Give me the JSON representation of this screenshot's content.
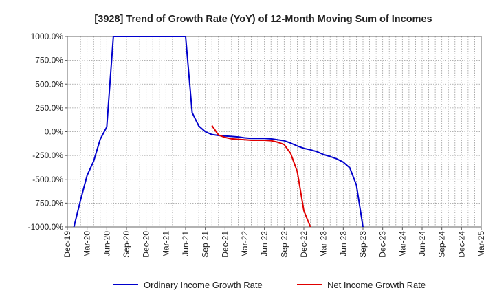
{
  "chart_data": {
    "type": "line",
    "title": "[3928]  Trend of Growth Rate (YoY) of 12-Month Moving Sum of Incomes",
    "xlabel": "",
    "ylabel": "",
    "x_ticks": [
      "Dec-19",
      "Mar-20",
      "Jun-20",
      "Sep-20",
      "Dec-20",
      "Mar-21",
      "Jun-21",
      "Sep-21",
      "Dec-21",
      "Mar-22",
      "Jun-22",
      "Sep-22",
      "Dec-22",
      "Mar-23",
      "Jun-23",
      "Sep-23",
      "Dec-23",
      "Mar-24",
      "Jun-24",
      "Sep-24",
      "Dec-24",
      "Mar-25"
    ],
    "y_ticks": [
      1000,
      750,
      500,
      250,
      0,
      -250,
      -500,
      -750,
      -1000
    ],
    "y_tick_labels": [
      "1000.0%",
      "750.0%",
      "500.0%",
      "250.0%",
      "0.0%",
      "-250.0%",
      "-500.0%",
      "-750.0%",
      "-1000.0%"
    ],
    "ylim": [
      -1000,
      1000
    ],
    "grid": "dotted",
    "legend_position": "bottom",
    "series": [
      {
        "name": "Ordinary Income Growth Rate",
        "color": "#0000cc",
        "points": [
          [
            "Jan-20",
            -1000
          ],
          [
            "Feb-20",
            -720
          ],
          [
            "Mar-20",
            -460
          ],
          [
            "Apr-20",
            -310
          ],
          [
            "May-20",
            -80
          ],
          [
            "Jun-20",
            50
          ],
          [
            "Jul-20",
            1000
          ],
          [
            "Jun-21",
            1000
          ],
          [
            "Jul-21",
            200
          ],
          [
            "Aug-21",
            60
          ],
          [
            "Sep-21",
            0
          ],
          [
            "Oct-21",
            -30
          ],
          [
            "Nov-21",
            -40
          ],
          [
            "Dec-21",
            -45
          ],
          [
            "Jan-22",
            -50
          ],
          [
            "Feb-22",
            -55
          ],
          [
            "Mar-22",
            -65
          ],
          [
            "Apr-22",
            -70
          ],
          [
            "May-22",
            -70
          ],
          [
            "Jun-22",
            -70
          ],
          [
            "Jul-22",
            -75
          ],
          [
            "Aug-22",
            -85
          ],
          [
            "Sep-22",
            -95
          ],
          [
            "Oct-22",
            -120
          ],
          [
            "Nov-22",
            -150
          ],
          [
            "Dec-22",
            -175
          ],
          [
            "Jan-23",
            -190
          ],
          [
            "Feb-23",
            -210
          ],
          [
            "Mar-23",
            -240
          ],
          [
            "Apr-23",
            -260
          ],
          [
            "May-23",
            -285
          ],
          [
            "Jun-23",
            -320
          ],
          [
            "Jul-23",
            -380
          ],
          [
            "Aug-23",
            -560
          ],
          [
            "Sep-23",
            -1000
          ]
        ]
      },
      {
        "name": "Net Income Growth Rate",
        "color": "#e00000",
        "points": [
          [
            "Oct-21",
            65
          ],
          [
            "Nov-21",
            -35
          ],
          [
            "Dec-21",
            -60
          ],
          [
            "Jan-22",
            -75
          ],
          [
            "Feb-22",
            -80
          ],
          [
            "Mar-22",
            -85
          ],
          [
            "Apr-22",
            -90
          ],
          [
            "May-22",
            -90
          ],
          [
            "Jun-22",
            -90
          ],
          [
            "Jul-22",
            -95
          ],
          [
            "Aug-22",
            -110
          ],
          [
            "Sep-22",
            -135
          ],
          [
            "Oct-22",
            -230
          ],
          [
            "Nov-22",
            -420
          ],
          [
            "Dec-22",
            -830
          ],
          [
            "Jan-23",
            -1000
          ]
        ]
      }
    ]
  }
}
